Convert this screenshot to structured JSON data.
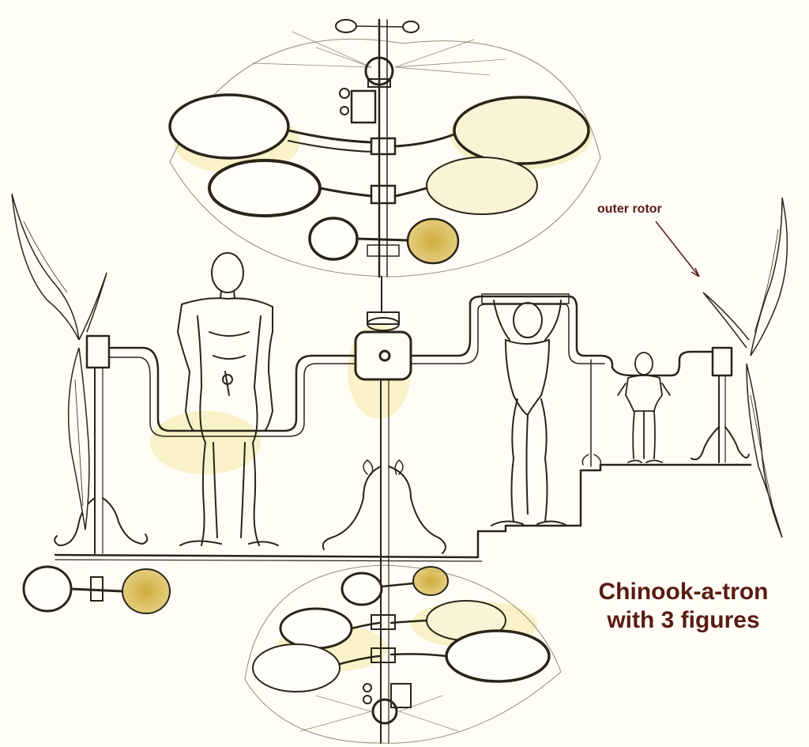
{
  "annotations": {
    "outer_rotor": "outer rotor"
  },
  "caption": {
    "line1": "Chinook-a-tron",
    "line2": "with 3 figures"
  },
  "colors": {
    "paper": "#fffdf6",
    "ink": "#2a2418",
    "ochre": "#c9a227",
    "label": "#5a1a14",
    "yellow_wash": "#f2e08a"
  }
}
